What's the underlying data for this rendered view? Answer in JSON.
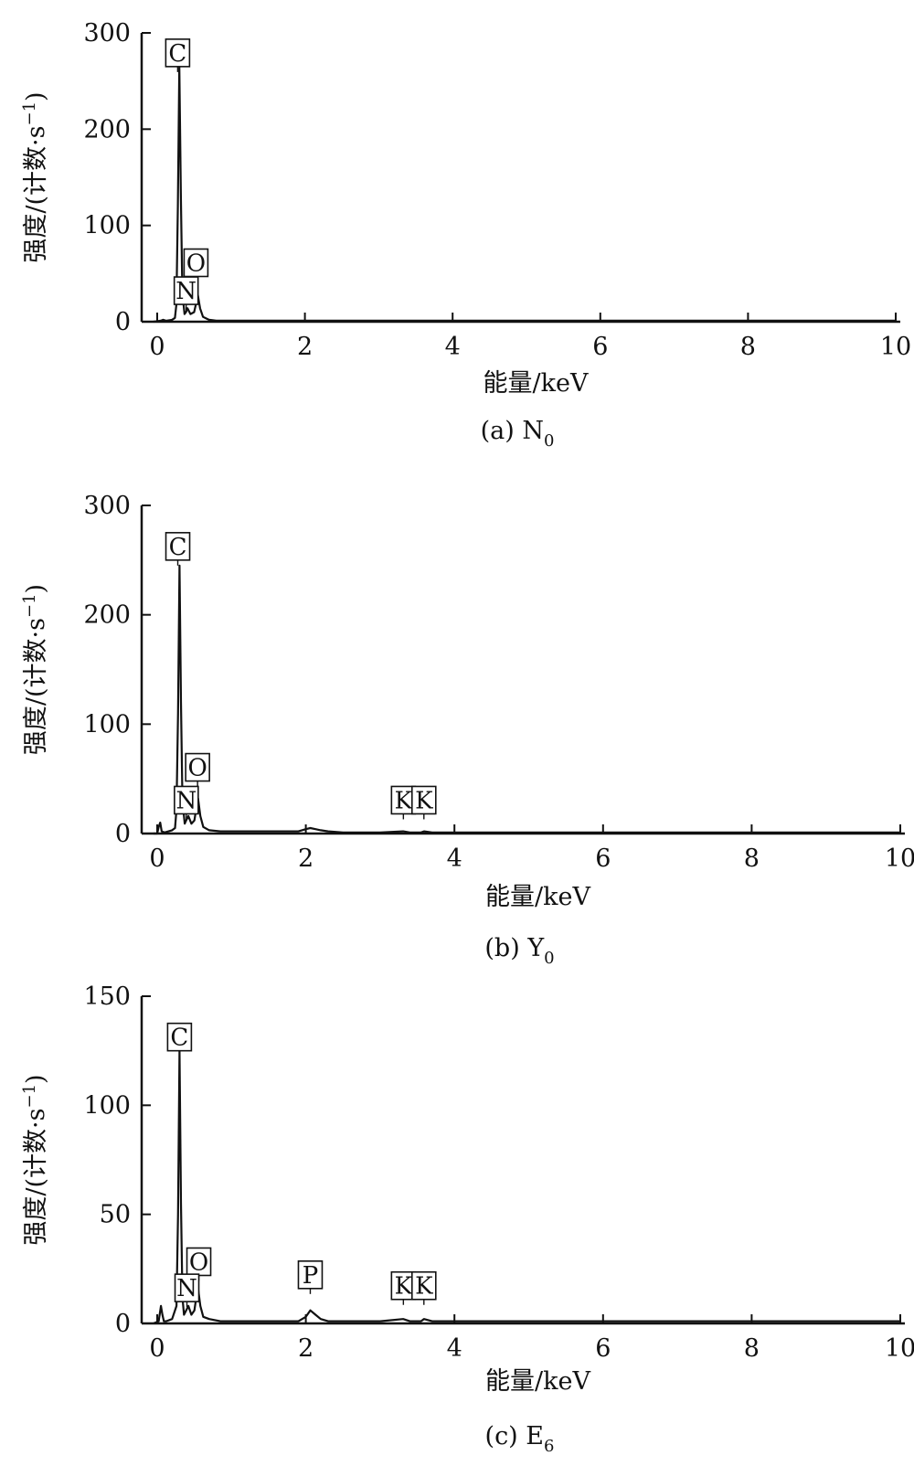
{
  "chart_data": [
    {
      "type": "line",
      "panel": "a",
      "caption": "(a) N",
      "caption_sub": "0",
      "xlabel": "能量/keV",
      "ylabel": "强度/(计数·s",
      "ylabel_sup": "−1",
      "ylabel_close": ")",
      "xlim": [
        0,
        10
      ],
      "ylim": [
        0,
        300
      ],
      "xticks": [
        0,
        2,
        4,
        6,
        8,
        10
      ],
      "yticks": [
        0,
        100,
        200,
        300
      ],
      "series": [
        {
          "x": [
            -0.05,
            0.05,
            0.08,
            0.12,
            0.2,
            0.24,
            0.26,
            0.28,
            0.3,
            0.32,
            0.34,
            0.37,
            0.39,
            0.41,
            0.45,
            0.5,
            0.53,
            0.55,
            0.58,
            0.62,
            0.7,
            0.8,
            1.0,
            1.5,
            2.0,
            2.5,
            3.0,
            4.0,
            5.0,
            6.0,
            7.0,
            8.0,
            9.0,
            10.0
          ],
          "y": [
            0,
            1,
            2,
            1,
            2,
            4,
            18,
            120,
            265,
            130,
            30,
            8,
            10,
            14,
            8,
            10,
            20,
            28,
            14,
            5,
            2,
            1,
            1,
            1,
            1,
            1,
            1,
            1,
            1,
            1,
            1,
            1,
            1,
            1
          ]
        }
      ],
      "peak_labels": [
        {
          "label": "C",
          "x": 0.277,
          "y": 265
        },
        {
          "label": "O",
          "x": 0.525,
          "y": 47
        },
        {
          "label": "N",
          "x": 0.392,
          "y": 18
        }
      ]
    },
    {
      "type": "line",
      "panel": "b",
      "caption": "(b) Y",
      "caption_sub": "0",
      "xlabel": "能量/keV",
      "ylabel": "强度/(计数·s",
      "ylabel_sup": "−1",
      "ylabel_close": ")",
      "xlim": [
        0,
        10
      ],
      "ylim": [
        0,
        300
      ],
      "xticks": [
        0,
        2,
        4,
        6,
        8,
        10
      ],
      "yticks": [
        0,
        100,
        200,
        300
      ],
      "series": [
        {
          "x": [
            -0.05,
            0.0,
            0.02,
            0.04,
            0.06,
            0.1,
            0.2,
            0.24,
            0.26,
            0.28,
            0.3,
            0.32,
            0.34,
            0.37,
            0.39,
            0.42,
            0.46,
            0.5,
            0.53,
            0.55,
            0.58,
            0.62,
            0.7,
            0.85,
            1.0,
            1.5,
            1.9,
            2.0,
            2.06,
            2.13,
            2.2,
            2.3,
            2.5,
            2.8,
            3.0,
            3.31,
            3.4,
            3.55,
            3.59,
            3.7,
            4.0,
            5.0,
            6.0,
            7.0,
            8.0,
            9.0,
            10.0
          ],
          "y": [
            0,
            0,
            6,
            10,
            2,
            1,
            3,
            5,
            22,
            110,
            245,
            120,
            30,
            9,
            12,
            16,
            9,
            12,
            25,
            32,
            16,
            6,
            3,
            2,
            2,
            2,
            2,
            4,
            5,
            4,
            3,
            2,
            1,
            1,
            1,
            2,
            1,
            1,
            2,
            1,
            1,
            1,
            1,
            1,
            1,
            1,
            1
          ]
        }
      ],
      "peak_labels": [
        {
          "label": "C",
          "x": 0.277,
          "y": 250
        },
        {
          "label": "O",
          "x": 0.543,
          "y": 48
        },
        {
          "label": "N",
          "x": 0.392,
          "y": 18
        },
        {
          "label": "K",
          "x": 3.313,
          "y": 18
        },
        {
          "label": "K",
          "x": 3.589,
          "y": 18
        }
      ]
    },
    {
      "type": "line",
      "panel": "c",
      "caption": "(c) E",
      "caption_sub": "6",
      "xlabel": "能量/keV",
      "ylabel": "强度/(计数·s",
      "ylabel_sup": "−1",
      "ylabel_close": ")",
      "xlim": [
        0,
        10
      ],
      "ylim": [
        0,
        150
      ],
      "xticks": [
        0,
        2,
        4,
        6,
        8,
        10
      ],
      "yticks": [
        0,
        50,
        100,
        150
      ],
      "series": [
        {
          "x": [
            -0.05,
            0.02,
            0.05,
            0.07,
            0.09,
            0.12,
            0.2,
            0.26,
            0.28,
            0.3,
            0.32,
            0.34,
            0.36,
            0.39,
            0.42,
            0.46,
            0.5,
            0.53,
            0.55,
            0.58,
            0.62,
            0.7,
            0.85,
            1.0,
            1.5,
            1.9,
            2.0,
            2.06,
            2.13,
            2.2,
            2.3,
            2.5,
            2.8,
            3.0,
            3.31,
            3.4,
            3.55,
            3.59,
            3.7,
            4.0,
            5.0,
            6.0,
            7.0,
            8.0,
            9.0,
            10.0
          ],
          "y": [
            0,
            1,
            8,
            4,
            1,
            1,
            2,
            8,
            50,
            125,
            55,
            12,
            4,
            6,
            8,
            4,
            6,
            13,
            16,
            8,
            3,
            2,
            1,
            1,
            1,
            1,
            3,
            6,
            4,
            2,
            1,
            1,
            1,
            1,
            2,
            1,
            1,
            2,
            1,
            1,
            1,
            1,
            1,
            1,
            1,
            1
          ]
        }
      ],
      "peak_labels": [
        {
          "label": "C",
          "x": 0.3,
          "y": 125
        },
        {
          "label": "O",
          "x": 0.56,
          "y": 22
        },
        {
          "label": "N",
          "x": 0.4,
          "y": 10
        },
        {
          "label": "P",
          "x": 2.06,
          "y": 16
        },
        {
          "label": "K",
          "x": 3.313,
          "y": 11
        },
        {
          "label": "K",
          "x": 3.589,
          "y": 11
        }
      ]
    }
  ]
}
